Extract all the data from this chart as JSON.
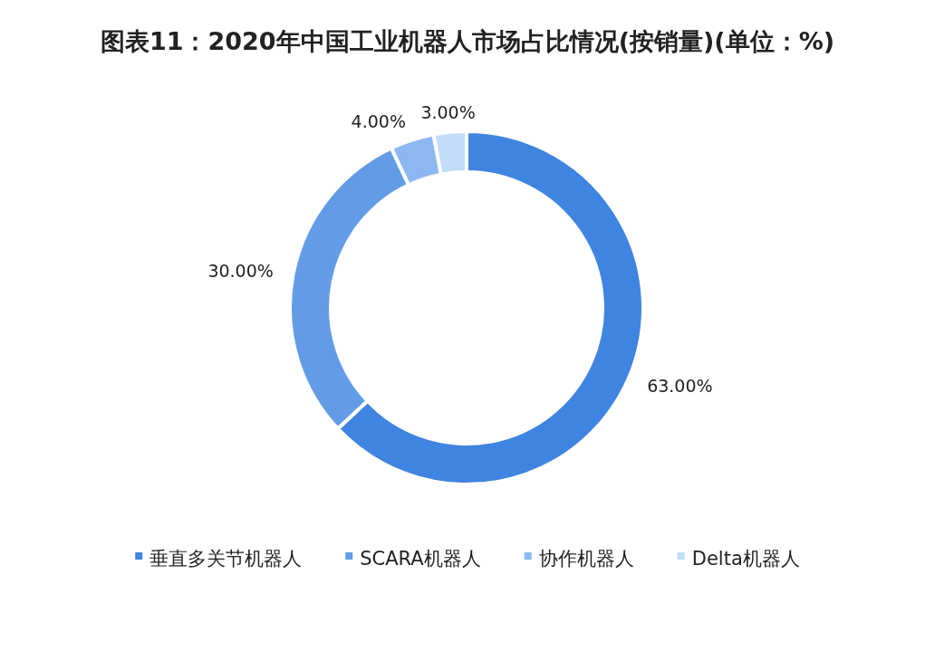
{
  "chart_data": {
    "type": "donut",
    "title": "图表11：2020年中国工业机器人市场占比情况(按销量)(单位：%)",
    "categories": [
      "垂直多关节机器人",
      "SCARA机器人",
      "协作机器人",
      "Delta机器人"
    ],
    "values": [
      63,
      30,
      4,
      3
    ],
    "colors": [
      "#3f84e0",
      "#639ce6",
      "#8db7f0",
      "#c2dcfa"
    ],
    "value_labels": [
      "63.00%",
      "30.00%",
      "4.00%",
      "3.00%"
    ],
    "legend": "bottom"
  }
}
